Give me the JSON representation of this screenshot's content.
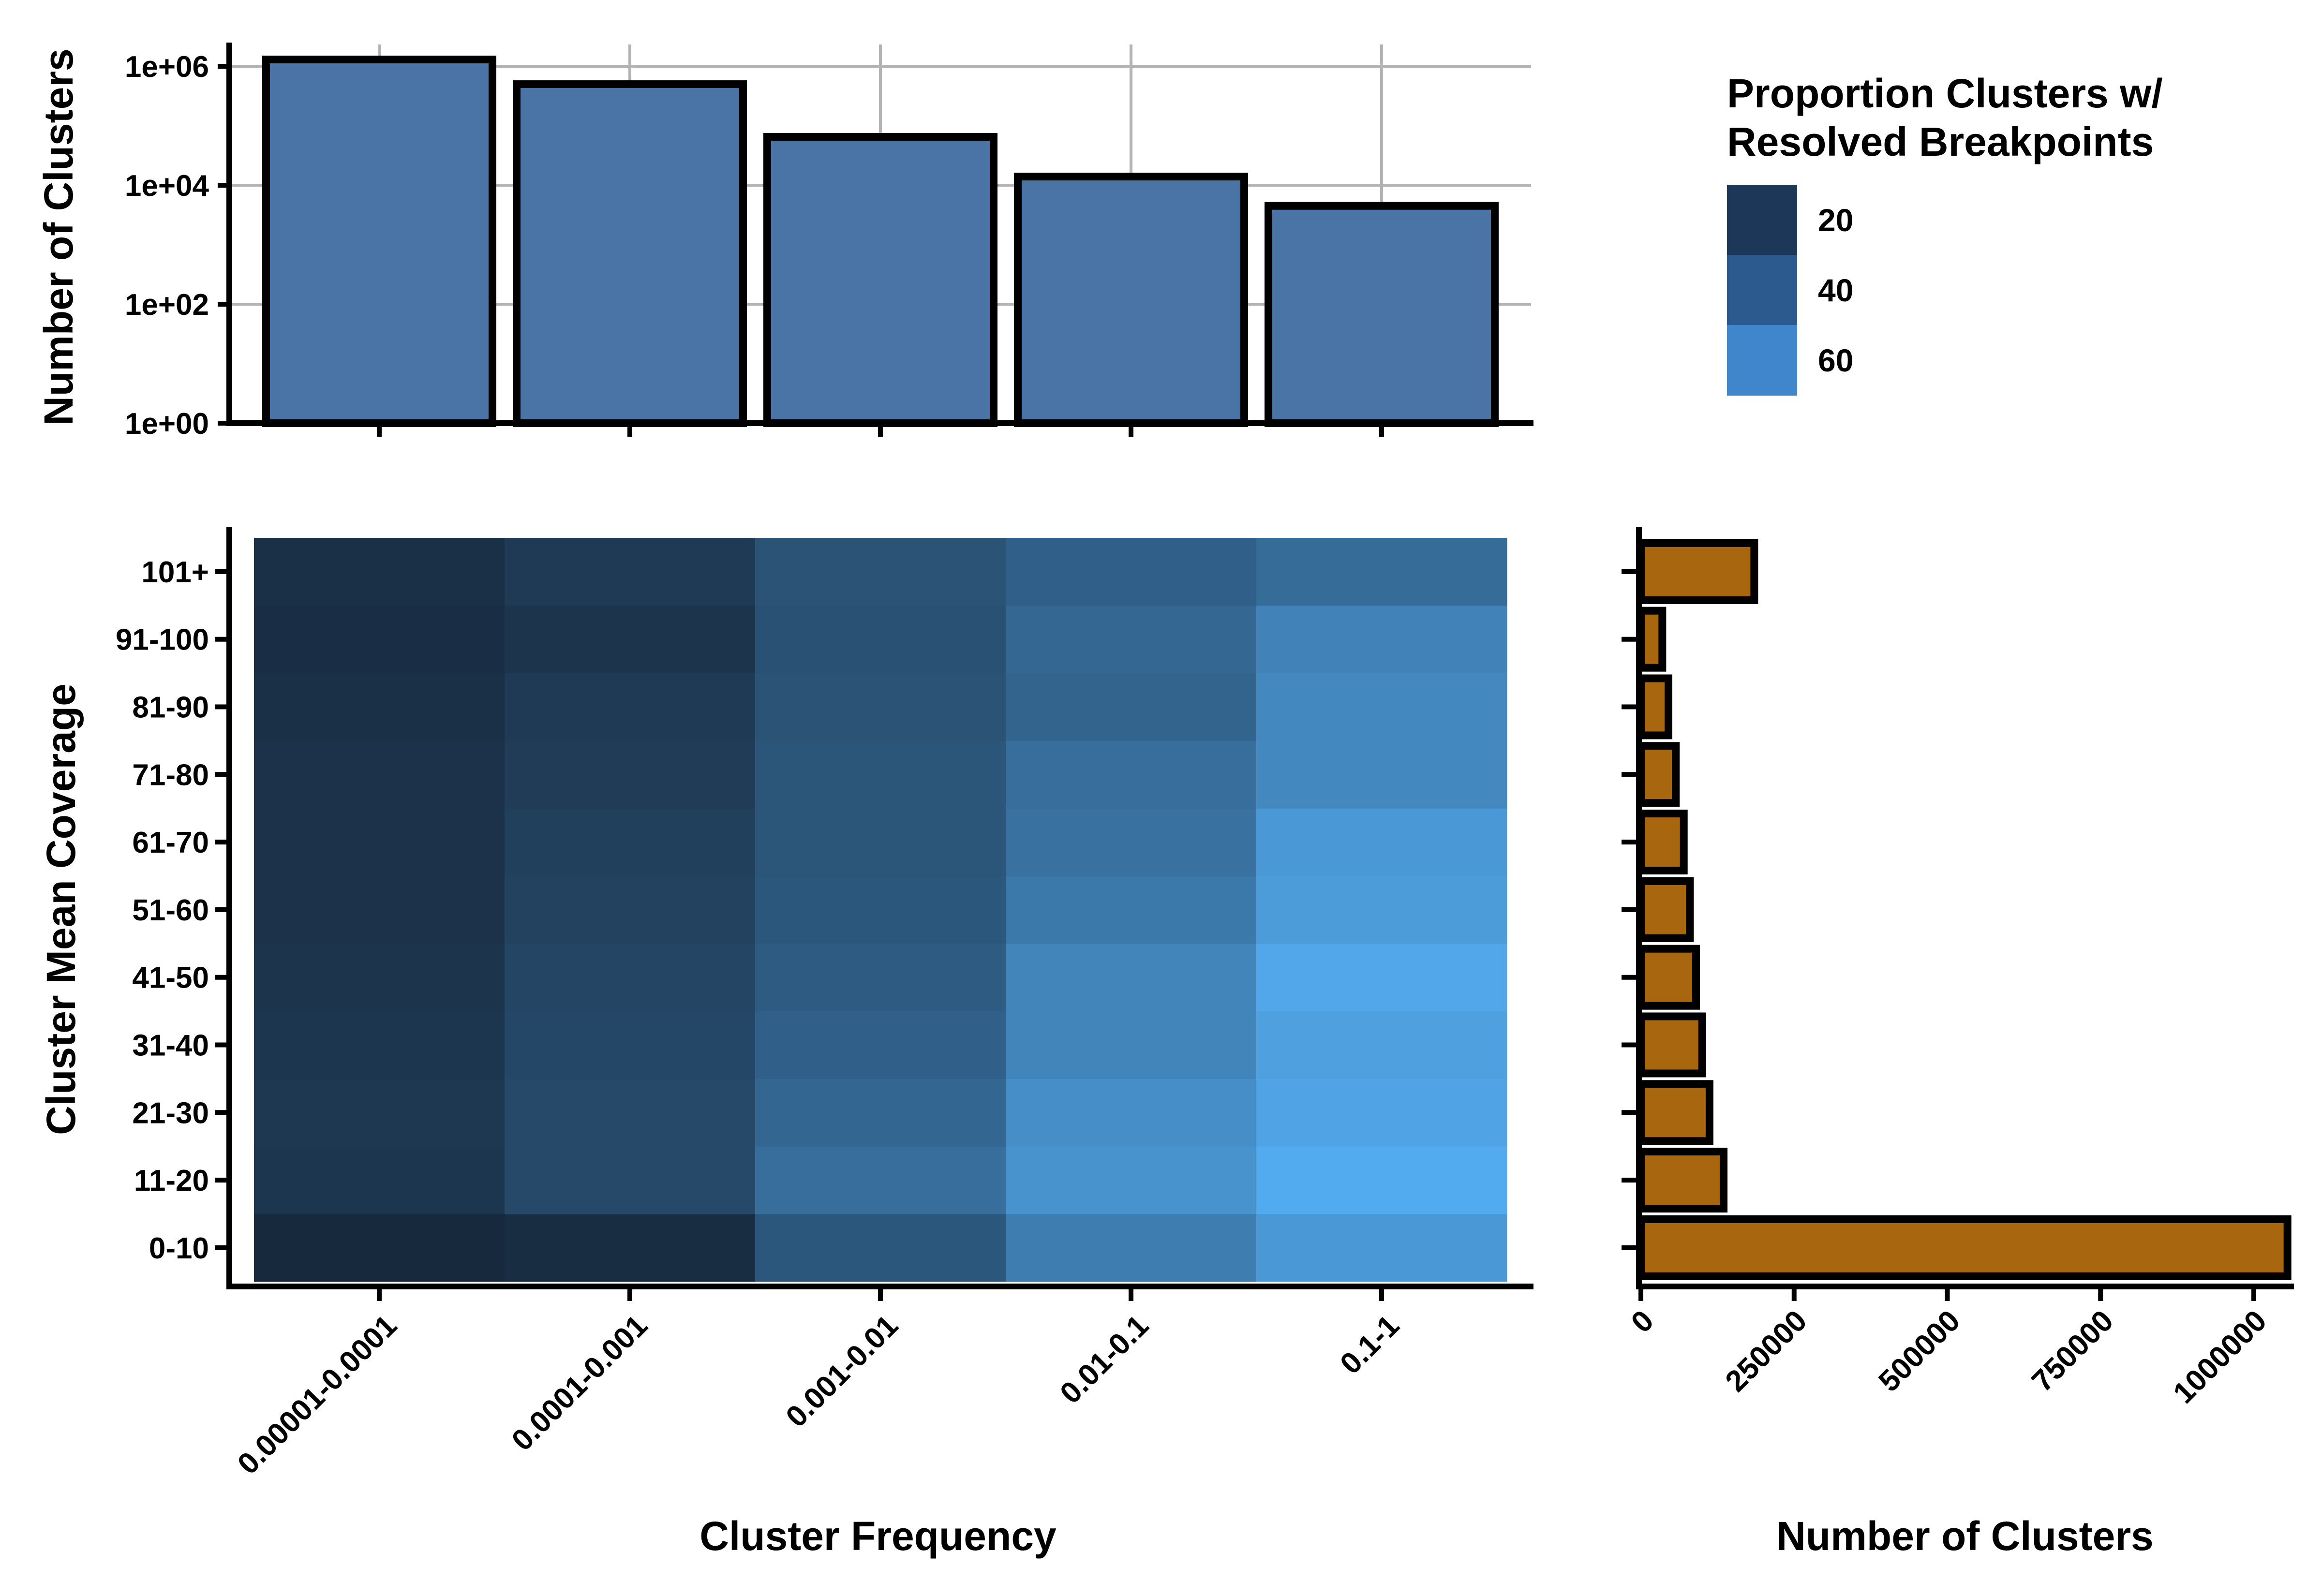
{
  "chart_data": [
    {
      "type": "bar",
      "title": "",
      "xlabel": "",
      "ylabel": "Number of Clusters",
      "yscale": "log10",
      "ylim": [
        1,
        2000000
      ],
      "ytick_labels": [
        "1e+00",
        "1e+02",
        "1e+04",
        "1e+06"
      ],
      "ytick_values": [
        1,
        100,
        10000,
        1000000
      ],
      "categories": [
        "0.00001-0.0001",
        "0.0001-0.001",
        "0.001-0.01",
        "0.01-0.1",
        "0.1-1"
      ],
      "values": [
        1300000,
        500000,
        65000,
        14000,
        4500
      ],
      "color": "#4a74a6",
      "grid": true
    },
    {
      "type": "heatmap",
      "title": "",
      "xlabel": "Cluster Frequency",
      "ylabel": "Cluster Mean Coverage",
      "x_categories": [
        "0.00001-0.0001",
        "0.0001-0.001",
        "0.001-0.01",
        "0.01-0.1",
        "0.1-1"
      ],
      "y_categories": [
        "0-10",
        "11-20",
        "21-30",
        "31-40",
        "41-50",
        "51-60",
        "61-70",
        "71-80",
        "81-90",
        "91-100",
        "101+"
      ],
      "values_rows_y_by_cols_x": [
        [
          4,
          6,
          28,
          48,
          62
        ],
        [
          11,
          21,
          40,
          59,
          72
        ],
        [
          12,
          21,
          36,
          57,
          68
        ],
        [
          11,
          20,
          33,
          52,
          66
        ],
        [
          10,
          19,
          30,
          52,
          70
        ],
        [
          9,
          17,
          28,
          46,
          64
        ],
        [
          9,
          16,
          27,
          42,
          62
        ],
        [
          9,
          14,
          27,
          40,
          54
        ],
        [
          8,
          13,
          26,
          35,
          54
        ],
        [
          7,
          10,
          25,
          37,
          51
        ],
        [
          8,
          13,
          26,
          33,
          39
        ]
      ],
      "color_scale": {
        "low": "#132132",
        "high": "#56b1f7"
      },
      "legend": {
        "title_lines": [
          "Proportion Clusters w/",
          "Resolved Breakpoints"
        ],
        "ticks": [
          "20",
          "40",
          "60"
        ],
        "tick_values": [
          20,
          40,
          60
        ],
        "colors": [
          "#1d3758",
          "#2c5a8f",
          "#4086cc"
        ],
        "position": "top-right"
      }
    },
    {
      "type": "bar",
      "orientation": "horizontal",
      "title": "",
      "xlabel": "Number of Clusters",
      "ylabel": "",
      "xlim": [
        0,
        1060000
      ],
      "xtick_labels": [
        "0",
        "250000",
        "500000",
        "750000",
        "1000000"
      ],
      "xtick_values": [
        0,
        250000,
        500000,
        750000,
        1000000
      ],
      "categories": [
        "0-10",
        "11-20",
        "21-30",
        "31-40",
        "41-50",
        "51-60",
        "61-70",
        "71-80",
        "81-90",
        "91-100",
        "101+"
      ],
      "values": [
        1055000,
        135000,
        112000,
        100000,
        90000,
        80000,
        70000,
        57000,
        45000,
        35000,
        185000
      ],
      "color": "#a8670f",
      "grid": false
    }
  ]
}
